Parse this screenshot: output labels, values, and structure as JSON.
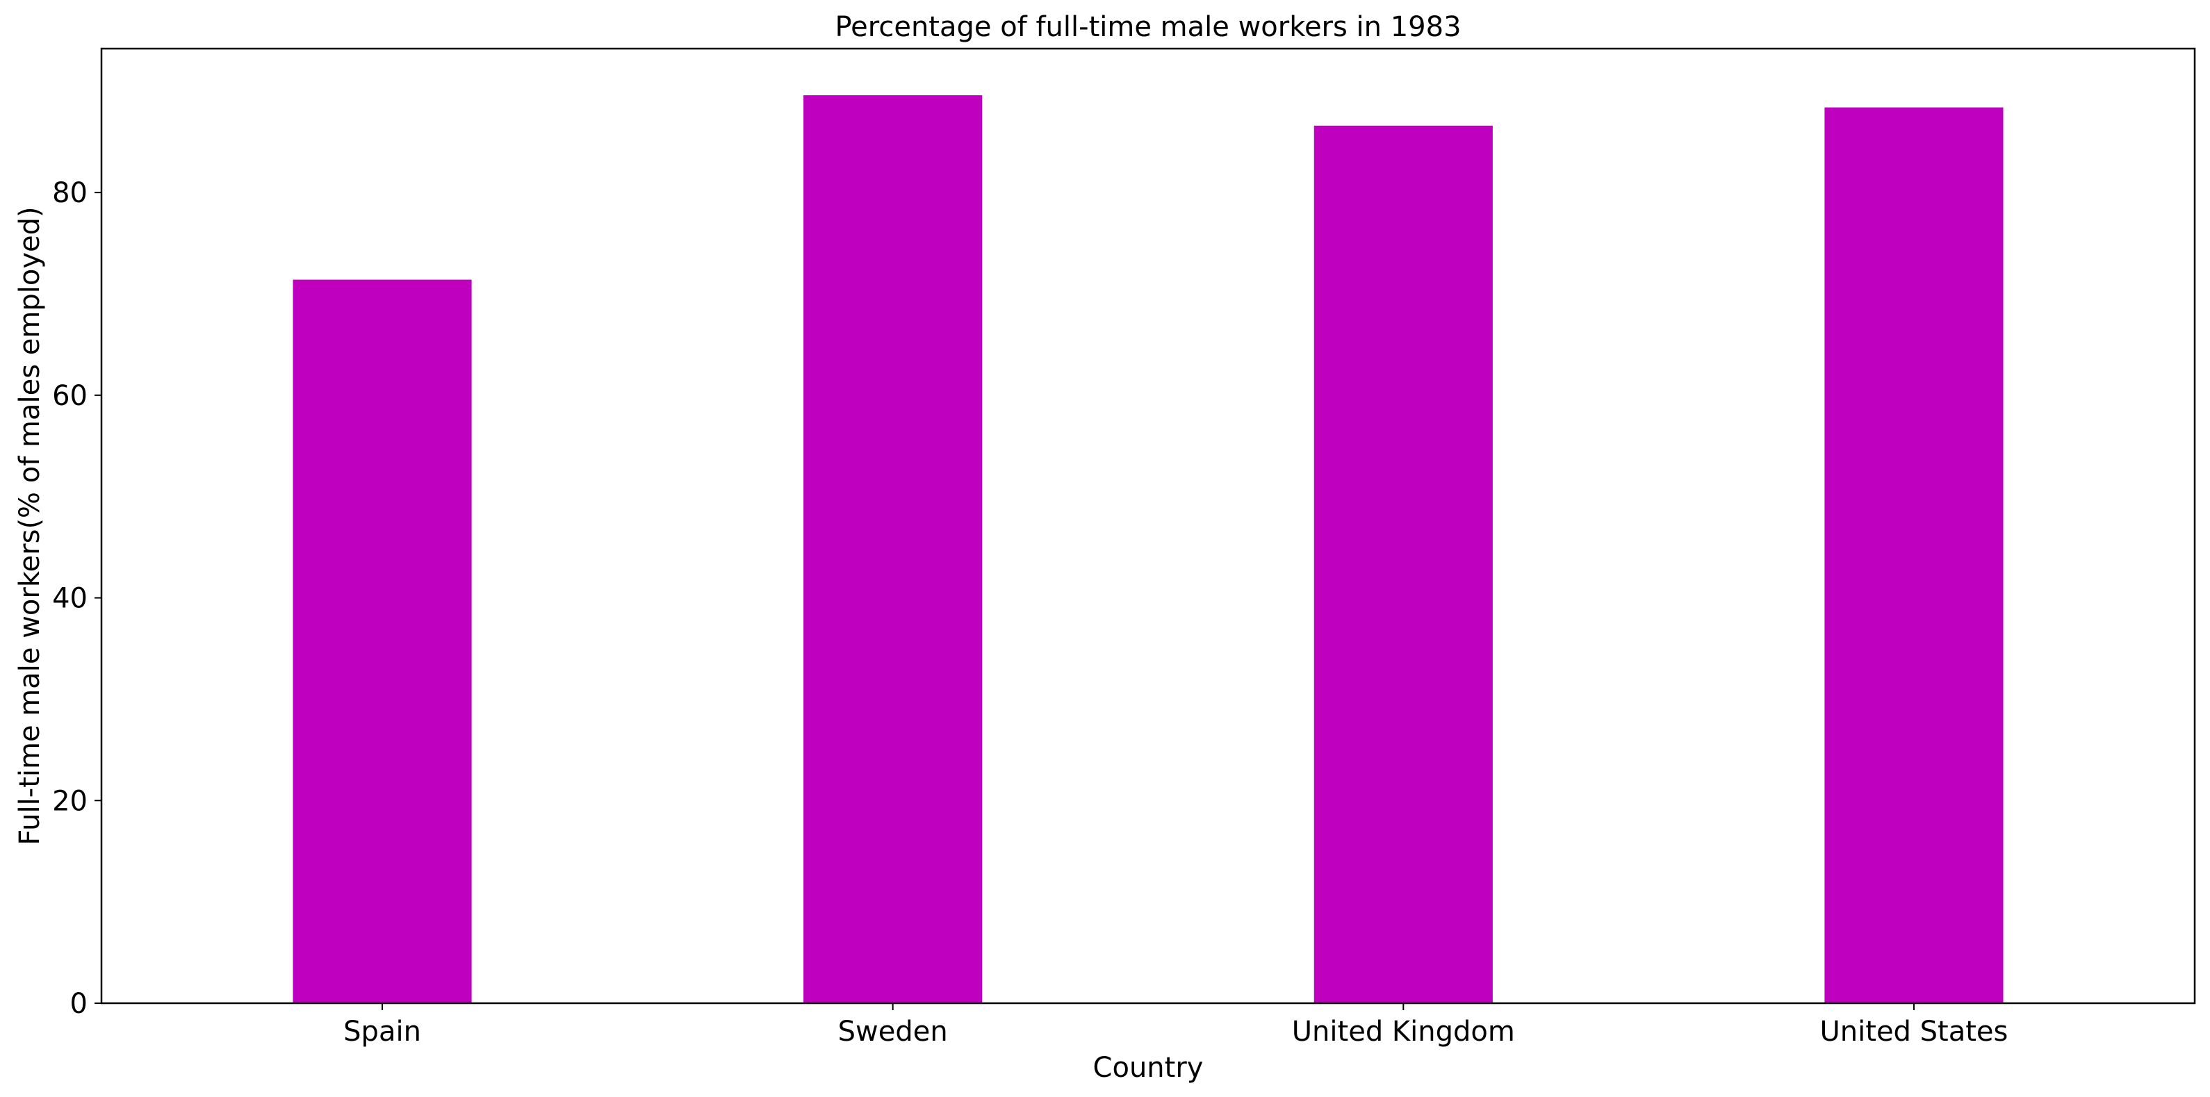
{
  "chart_data": {
    "type": "bar",
    "title": "Percentage of full-time male workers in 1983",
    "xlabel": "Country",
    "ylabel": "Full-time male workers(% of males employed)",
    "categories": [
      "Spain",
      "Sweden",
      "United Kingdom",
      "United States"
    ],
    "values": [
      71.4,
      89.6,
      86.6,
      88.4
    ],
    "ylim": [
      0,
      94.2
    ],
    "yticks": [
      0,
      20,
      40,
      60,
      80
    ],
    "bar_color": "#bf00bf",
    "grid": false,
    "legend": "none"
  }
}
